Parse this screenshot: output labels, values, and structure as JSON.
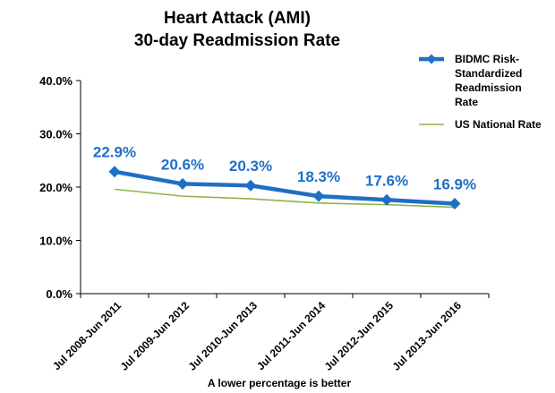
{
  "chart_data": {
    "type": "line",
    "title_lines": [
      "Heart Attack (AMI)",
      "30-day Readmission Rate"
    ],
    "xlabel": "A lower percentage is better",
    "ylabel": "",
    "categories": [
      "Jul 2008-Jun 2011",
      "Jul 2009-Jun 2012",
      "Jul 2010-Jun 2013",
      "Jul 2011-Jun 2014",
      "Jul 2012-Jun 2015",
      "Jul 2013-Jun 2016"
    ],
    "ylim": [
      0,
      40
    ],
    "yticks": [
      "0.0%",
      "10.0%",
      "20.0%",
      "30.0%",
      "40.0%"
    ],
    "grid": false,
    "legend_position": "right",
    "series": [
      {
        "name_lines": [
          "BIDMC Risk-",
          "Standardized",
          "Readmission",
          "Rate"
        ],
        "color": "#1f6fc5",
        "marker": "diamond",
        "values": [
          22.9,
          20.6,
          20.3,
          18.3,
          17.6,
          16.9
        ],
        "data_labels": [
          "22.9%",
          "20.6%",
          "20.3%",
          "18.3%",
          "17.6%",
          "16.9%"
        ]
      },
      {
        "name_lines": [
          "US National Rate"
        ],
        "color": "#8cb44a",
        "marker": "none",
        "values": [
          19.6,
          18.3,
          17.8,
          17.0,
          16.7,
          16.2
        ]
      }
    ]
  }
}
